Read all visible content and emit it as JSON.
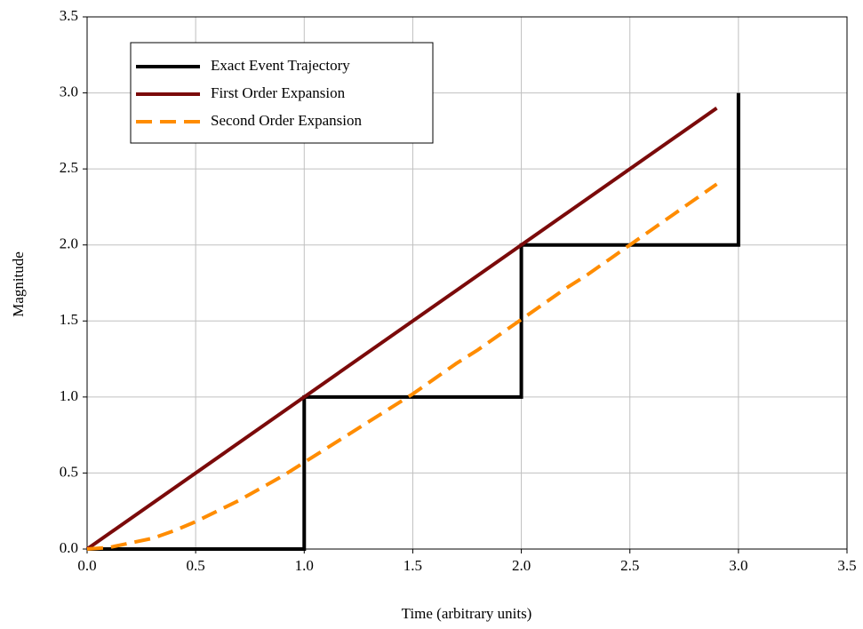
{
  "chart_data": {
    "type": "line",
    "xlabel": "Time (arbitrary units)",
    "ylabel": "Magnitude",
    "xlim": [
      0,
      3.5
    ],
    "ylim": [
      0,
      3.5
    ],
    "xticks": [
      {
        "value": 0,
        "label": "0.0"
      },
      0.5,
      {
        "value": 1,
        "label": "1.0"
      },
      1.5,
      {
        "value": 2,
        "label": "2.0"
      },
      2.5,
      {
        "value": 3,
        "label": "3.0"
      },
      3.5
    ],
    "yticks": [
      {
        "value": 0,
        "label": "0.0"
      },
      0.5,
      {
        "value": 1,
        "label": "1.0"
      },
      1.5,
      {
        "value": 2,
        "label": "2.0"
      },
      2.5,
      {
        "value": 3,
        "label": "3.0"
      },
      3.5
    ],
    "grid": true,
    "legend": "upper left",
    "series": [
      {
        "name": "Exact Event Trajectory",
        "color": "#000000",
        "line_style": "solid",
        "x": [
          0,
          1,
          1,
          2,
          2,
          3,
          3
        ],
        "values": [
          0,
          0,
          1,
          1,
          2,
          2,
          3
        ]
      },
      {
        "name": "First Order Expansion",
        "color": "#7b0a0a",
        "line_style": "solid",
        "x": [
          0,
          2.9
        ],
        "values": [
          0,
          2.9
        ]
      },
      {
        "name": "Second Order Expansion",
        "color": "#ff8c00",
        "line_style": "dashed",
        "x": [
          0,
          0.1,
          0.2,
          0.3,
          0.4,
          0.5,
          0.6,
          0.7,
          0.8,
          0.9,
          1.0,
          1.1,
          1.2,
          1.3,
          1.4,
          1.5,
          1.6,
          1.7,
          1.8,
          1.9,
          2.0,
          2.1,
          2.2,
          2.3,
          2.4,
          2.5,
          2.6,
          2.7,
          2.8,
          2.9
        ],
        "values": [
          0,
          0.01,
          0.04,
          0.07,
          0.12,
          0.18,
          0.25,
          0.32,
          0.4,
          0.48,
          0.57,
          0.66,
          0.75,
          0.84,
          0.93,
          1.02,
          1.12,
          1.22,
          1.31,
          1.41,
          1.51,
          1.61,
          1.71,
          1.8,
          1.9,
          2.0,
          2.1,
          2.2,
          2.3,
          2.4
        ]
      }
    ]
  }
}
